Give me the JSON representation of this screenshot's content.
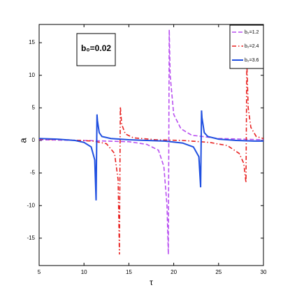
{
  "chart_data": {
    "type": "line",
    "annotation": "b₀=0.02",
    "xlabel": "τ",
    "ylabel": "a",
    "xlim": [
      5,
      30
    ],
    "ylim": [
      -19.2,
      17.8
    ],
    "xticks": [
      5,
      10,
      15,
      20,
      25,
      30
    ],
    "yticks": [
      -15,
      -10,
      -5,
      0,
      5,
      10,
      15
    ],
    "legend": "upper right",
    "series": [
      {
        "name": "b₂=1.2",
        "color": "#b84ff0",
        "dash": "dashed",
        "x": [
          5,
          10,
          15,
          17,
          18.3,
          18.9,
          19.25,
          19.4,
          19.5,
          19.6,
          20,
          20.8,
          22,
          25,
          30
        ],
        "values": [
          0.1,
          0,
          -0.2,
          -0.6,
          -1.5,
          -4,
          -10,
          -17.5,
          17,
          10,
          4,
          1.8,
          0.8,
          0.3,
          0.1
        ]
      },
      {
        "name": "b₂=2.4",
        "color": "#e8201f",
        "dash": "dashdot",
        "x": [
          5,
          8,
          11,
          12.5,
          13.4,
          13.8,
          13.95,
          14.05,
          14.2,
          14.6,
          15.5,
          18,
          21,
          24,
          26,
          27.3,
          27.8,
          28.05,
          28.15,
          28.3,
          28.6,
          29.2,
          30
        ],
        "values": [
          0.2,
          0.1,
          -0.1,
          -0.5,
          -2,
          -6,
          -17.5,
          5.2,
          2.5,
          1,
          0.4,
          0.1,
          0,
          -0.3,
          -0.8,
          -2,
          -3.5,
          -6.5,
          12,
          5,
          2,
          0.6,
          0.3
        ]
      },
      {
        "name": "b₂=3.6",
        "color": "#1f4fe0",
        "dash": "solid",
        "x": [
          5,
          7,
          9,
          10,
          10.8,
          11.2,
          11.35,
          11.45,
          11.5,
          11.7,
          12,
          13,
          15,
          17,
          19,
          21,
          22.2,
          22.8,
          23.0,
          23.1,
          23.15,
          23.4,
          23.8,
          25,
          27,
          29,
          30
        ],
        "values": [
          0.3,
          0.2,
          0,
          -0.3,
          -1,
          -3,
          -9.2,
          4,
          3,
          1.2,
          0.6,
          0.3,
          0.1,
          0,
          -0.1,
          -0.4,
          -1,
          -2.5,
          -7.2,
          4.6,
          3.5,
          1.2,
          0.6,
          0.2,
          0,
          -0.1,
          -0.1
        ]
      }
    ]
  }
}
